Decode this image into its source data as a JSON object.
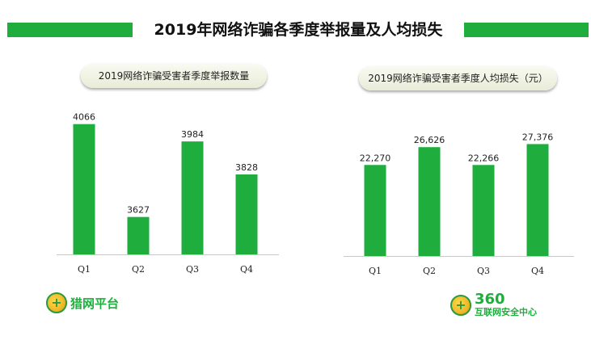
{
  "title": "2019年网络诈骗各季度举报量及人均损失",
  "colors": {
    "accent": "#1fad3e"
  },
  "chart_data": [
    {
      "type": "bar",
      "title": "2019网络诈骗受害者季度举报数量",
      "categories": [
        "Q1",
        "Q2",
        "Q3",
        "Q4"
      ],
      "values": [
        4066,
        3627,
        3984,
        3828
      ],
      "value_labels": [
        "4066",
        "3627",
        "3984",
        "3828"
      ],
      "ylim": [
        3450,
        4080
      ]
    },
    {
      "type": "bar",
      "title": "2019网络诈骗受害者季度人均损失（元）",
      "categories": [
        "Q1",
        "Q2",
        "Q3",
        "Q4"
      ],
      "values": [
        22270,
        26626,
        22266,
        27376
      ],
      "value_labels": [
        "22,270",
        "26,626",
        "22,266",
        "27,376"
      ],
      "ylim": [
        0,
        32000
      ]
    }
  ],
  "logos": {
    "left": {
      "text": "猎网平台",
      "icon": "shield-cross-icon"
    },
    "right": {
      "number": "360",
      "text": "互联网安全中心",
      "icon": "shield-cross-icon"
    }
  }
}
